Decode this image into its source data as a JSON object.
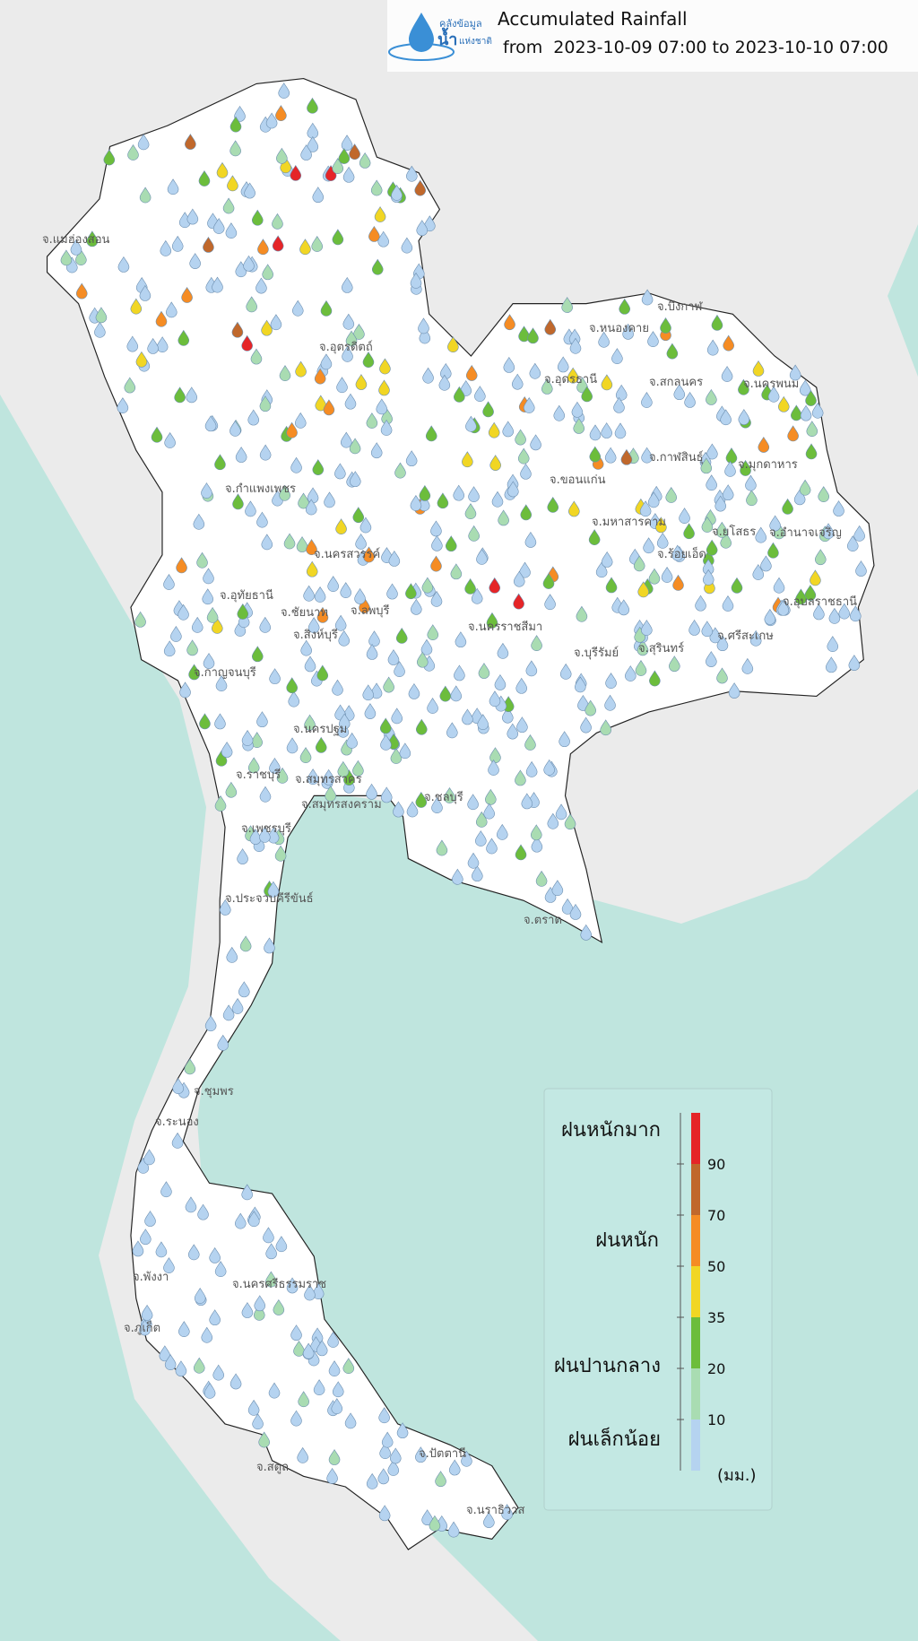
{
  "header": {
    "logo": {
      "line1": "คลังข้อมูล",
      "line2": "น้ำ",
      "line3": "แห่งชาติ"
    },
    "title": "Accumulated Rainfall",
    "subtitle": "from  2023-10-09 07:00 to 2023-10-10 07:00"
  },
  "provinces": [
    "จ.แม่ฮ่องสอน",
    "จ.อุตรดิตถ์",
    "จ.บึงกาฬ",
    "จ.หนองคาย",
    "จ.อุดรธานี",
    "จ.สกลนคร",
    "จ.นครพนม",
    "จ.กาฬสินธุ์",
    "จ.มุกดาหาร",
    "จ.ขอนแก่น",
    "จ.มหาสารคาม",
    "จ.ร้อยเอ็ด",
    "จ.ยโสธร",
    "จ.อำนาจเจริญ",
    "จ.อุบลราชธานี",
    "จ.ศรีสะเกษ",
    "จ.สุรินทร์",
    "จ.บุรีรัมย์",
    "จ.นครราชสีมา",
    "จ.กำแพงเพชร",
    "จ.นครสวรรค์",
    "จ.อุทัยธานี",
    "จ.ชัยนาท",
    "จ.สิงห์บุรี",
    "จ.ลพบุรี",
    "จ.กาญจนบุรี",
    "จ.นครปฐม",
    "จ.ราชบุรี",
    "จ.สมุทรสาคร",
    "จ.สมุทรสงคราม",
    "จ.เพชรบุรี",
    "จ.ประจวบคีรีขันธ์",
    "จ.ชลบุรี",
    "จ.ตราด",
    "จ.ชุมพร",
    "จ.ระนอง",
    "จ.พังงา",
    "จ.ภูเก็ต",
    "จ.นครศรีธรรมราช",
    "จ.สตูล",
    "จ.ปัตตานี",
    "จ.นราธิวาส"
  ],
  "legend": {
    "classes": [
      "ฝนหนักมาก",
      "ฝนหนัก",
      "ฝนปานกลาง",
      "ฝนเล็กน้อย"
    ],
    "ticks": [
      10,
      20,
      35,
      50,
      70,
      90
    ],
    "unit": "(มม.)",
    "colors": [
      "#b5d3f0",
      "#a9dcb2",
      "#6cbd3c",
      "#f1d624",
      "#f58c24",
      "#c0682c",
      "#e52528"
    ]
  }
}
